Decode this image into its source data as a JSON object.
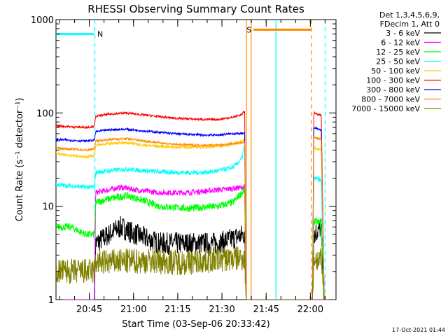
{
  "chart_data": {
    "type": "line",
    "title": "RHESSI Observing Summary Count Rates",
    "xlabel": "Start Time (03-Sep-06 20:33:42)",
    "ylabel": "Count Rate (s⁻¹ detector⁻¹)",
    "yscale": "log",
    "ylim": [
      1,
      1000
    ],
    "xlim_minutes": [
      0,
      95
    ],
    "y_tick_labels": [
      "1",
      "10",
      "100",
      "1000"
    ],
    "x_ticks": [
      {
        "label": "20:45",
        "minute": 11.3
      },
      {
        "label": "21:00",
        "minute": 26.3
      },
      {
        "label": "21:15",
        "minute": 41.3
      },
      {
        "label": "21:30",
        "minute": 56.3
      },
      {
        "label": "21:45",
        "minute": 71.3
      },
      {
        "label": "22:00",
        "minute": 86.3
      }
    ],
    "legend": {
      "header": [
        "Det 1,3,4,5,6,9,",
        "FDecim 1, Att 0"
      ],
      "placement": "right"
    },
    "series": [
      {
        "name": "3 - 6 keV",
        "color": "#000000",
        "noise": 0.12,
        "points": [
          [
            0,
            1
          ],
          [
            13,
            1
          ],
          [
            13.5,
            4
          ],
          [
            18,
            5
          ],
          [
            22,
            6
          ],
          [
            27,
            5
          ],
          [
            35,
            4
          ],
          [
            45,
            4
          ],
          [
            55,
            4
          ],
          [
            60,
            4.5
          ],
          [
            64,
            5
          ],
          [
            64.5,
            1
          ],
          [
            87,
            1
          ],
          [
            87.5,
            5
          ],
          [
            90,
            6
          ],
          [
            91,
            1
          ],
          [
            95,
            1
          ]
        ]
      },
      {
        "name": "6 - 12 keV",
        "color": "#ff00ff",
        "noise": 0.03,
        "points": [
          [
            0,
            1
          ],
          [
            13,
            1
          ],
          [
            13.5,
            14
          ],
          [
            18,
            15
          ],
          [
            22,
            16
          ],
          [
            27,
            15
          ],
          [
            35,
            14
          ],
          [
            45,
            14
          ],
          [
            55,
            15
          ],
          [
            60,
            15.5
          ],
          [
            64,
            16
          ],
          [
            64.5,
            1
          ],
          [
            95,
            1
          ]
        ]
      },
      {
        "name": "12 - 25 keV",
        "color": "#00ff00",
        "noise": 0.04,
        "points": [
          [
            0,
            6
          ],
          [
            5,
            6
          ],
          [
            10,
            5
          ],
          [
            13,
            5
          ],
          [
            13.5,
            11
          ],
          [
            18,
            12
          ],
          [
            24,
            13
          ],
          [
            28,
            12
          ],
          [
            35,
            10
          ],
          [
            45,
            9.5
          ],
          [
            55,
            10
          ],
          [
            60,
            11
          ],
          [
            64,
            15
          ],
          [
            64.5,
            1
          ],
          [
            87,
            1
          ],
          [
            87.5,
            7
          ],
          [
            90,
            6.5
          ],
          [
            91,
            1
          ],
          [
            95,
            1
          ]
        ]
      },
      {
        "name": "25 - 50 keV",
        "color": "#00ffff",
        "noise": 0.025,
        "points": [
          [
            0,
            17
          ],
          [
            5,
            16.5
          ],
          [
            10,
            16
          ],
          [
            13,
            16
          ],
          [
            13.5,
            23
          ],
          [
            18,
            24
          ],
          [
            24,
            25
          ],
          [
            30,
            24
          ],
          [
            40,
            23
          ],
          [
            50,
            23
          ],
          [
            55,
            24
          ],
          [
            60,
            26
          ],
          [
            63,
            32
          ],
          [
            64,
            45
          ],
          [
            64.5,
            1
          ],
          [
            87,
            1
          ],
          [
            87.5,
            20
          ],
          [
            90,
            19
          ],
          [
            91,
            1
          ],
          [
            95,
            1
          ]
        ]
      },
      {
        "name": "50 - 100 keV",
        "color": "#ffcc00",
        "noise": 0.015,
        "points": [
          [
            0,
            37
          ],
          [
            5,
            35
          ],
          [
            10,
            34
          ],
          [
            13,
            35
          ],
          [
            13.5,
            45
          ],
          [
            18,
            47
          ],
          [
            24,
            48
          ],
          [
            30,
            45
          ],
          [
            40,
            43
          ],
          [
            50,
            43
          ],
          [
            55,
            44
          ],
          [
            60,
            46
          ],
          [
            64,
            52
          ],
          [
            64.5,
            1
          ],
          [
            87,
            1
          ],
          [
            87.5,
            42
          ],
          [
            90,
            40
          ],
          [
            91,
            1
          ],
          [
            95,
            1
          ]
        ]
      },
      {
        "name": "100 - 300 keV",
        "color": "#ff0000",
        "noise": 0.012,
        "points": [
          [
            0,
            73
          ],
          [
            5,
            71
          ],
          [
            10,
            70
          ],
          [
            13,
            72
          ],
          [
            13.5,
            92
          ],
          [
            18,
            97
          ],
          [
            24,
            100
          ],
          [
            30,
            95
          ],
          [
            40,
            88
          ],
          [
            50,
            85
          ],
          [
            55,
            85
          ],
          [
            60,
            90
          ],
          [
            63,
            96
          ],
          [
            64,
            105
          ],
          [
            64.5,
            1
          ],
          [
            87,
            1
          ],
          [
            87.5,
            100
          ],
          [
            90,
            95
          ],
          [
            91,
            1
          ],
          [
            95,
            1
          ]
        ]
      },
      {
        "name": "300 - 800 keV",
        "color": "#0000ff",
        "noise": 0.012,
        "points": [
          [
            0,
            52
          ],
          [
            5,
            51
          ],
          [
            10,
            50
          ],
          [
            13,
            51
          ],
          [
            13.5,
            63
          ],
          [
            18,
            66
          ],
          [
            24,
            67
          ],
          [
            30,
            64
          ],
          [
            40,
            60
          ],
          [
            50,
            58
          ],
          [
            55,
            58
          ],
          [
            60,
            60
          ],
          [
            64,
            60
          ],
          [
            64.5,
            1
          ],
          [
            87,
            1
          ],
          [
            87.5,
            70
          ],
          [
            90,
            65
          ],
          [
            91,
            1
          ],
          [
            95,
            1
          ]
        ]
      },
      {
        "name": "800 - 7000 keV",
        "color": "#ff8800",
        "noise": 0.012,
        "points": [
          [
            0,
            42
          ],
          [
            5,
            41
          ],
          [
            10,
            40
          ],
          [
            13,
            41
          ],
          [
            13.5,
            50
          ],
          [
            18,
            52
          ],
          [
            24,
            53
          ],
          [
            30,
            50
          ],
          [
            40,
            46
          ],
          [
            50,
            45
          ],
          [
            55,
            45
          ],
          [
            60,
            47
          ],
          [
            64,
            48
          ],
          [
            64.5,
            1
          ],
          [
            87,
            1
          ],
          [
            87.5,
            55
          ],
          [
            90,
            52
          ],
          [
            91,
            1
          ],
          [
            95,
            1
          ]
        ]
      },
      {
        "name": "7000 - 15000 keV",
        "color": "#808000",
        "noise": 0.14,
        "points": [
          [
            0,
            2
          ],
          [
            13,
            2
          ],
          [
            13.5,
            2.5
          ],
          [
            30,
            2.6
          ],
          [
            45,
            2.5
          ],
          [
            55,
            2.7
          ],
          [
            64,
            2.8
          ],
          [
            64.5,
            1
          ],
          [
            87,
            1
          ],
          [
            87.5,
            2.8
          ],
          [
            90,
            2.6
          ],
          [
            91,
            1
          ],
          [
            95,
            1
          ]
        ]
      }
    ],
    "annotations": [
      {
        "kind": "flag",
        "text": "N",
        "color": "#00ffff",
        "y": 700,
        "x_from": 0,
        "x_to": 13,
        "x_label": 15
      },
      {
        "kind": "flag",
        "text": "S",
        "color": "#ff8800",
        "y": 780,
        "x_from": 67,
        "x_to": 86.5,
        "x_label": 65.5
      }
    ],
    "vertical_markers": [
      {
        "minute": 13.2,
        "color": "#00ffff",
        "style": "dashed"
      },
      {
        "minute": 64.6,
        "color": "#ff8800",
        "style": "solid"
      },
      {
        "minute": 66.2,
        "color": "#ff8800",
        "style": "solid"
      },
      {
        "minute": 74.6,
        "color": "#00ffff",
        "style": "solid"
      },
      {
        "minute": 86.7,
        "color": "#ff8800",
        "style": "dashed"
      },
      {
        "minute": 91.3,
        "color": "#00ffff",
        "style": "dashed"
      }
    ],
    "footer_date": "17-Oct-2021 01:44"
  }
}
